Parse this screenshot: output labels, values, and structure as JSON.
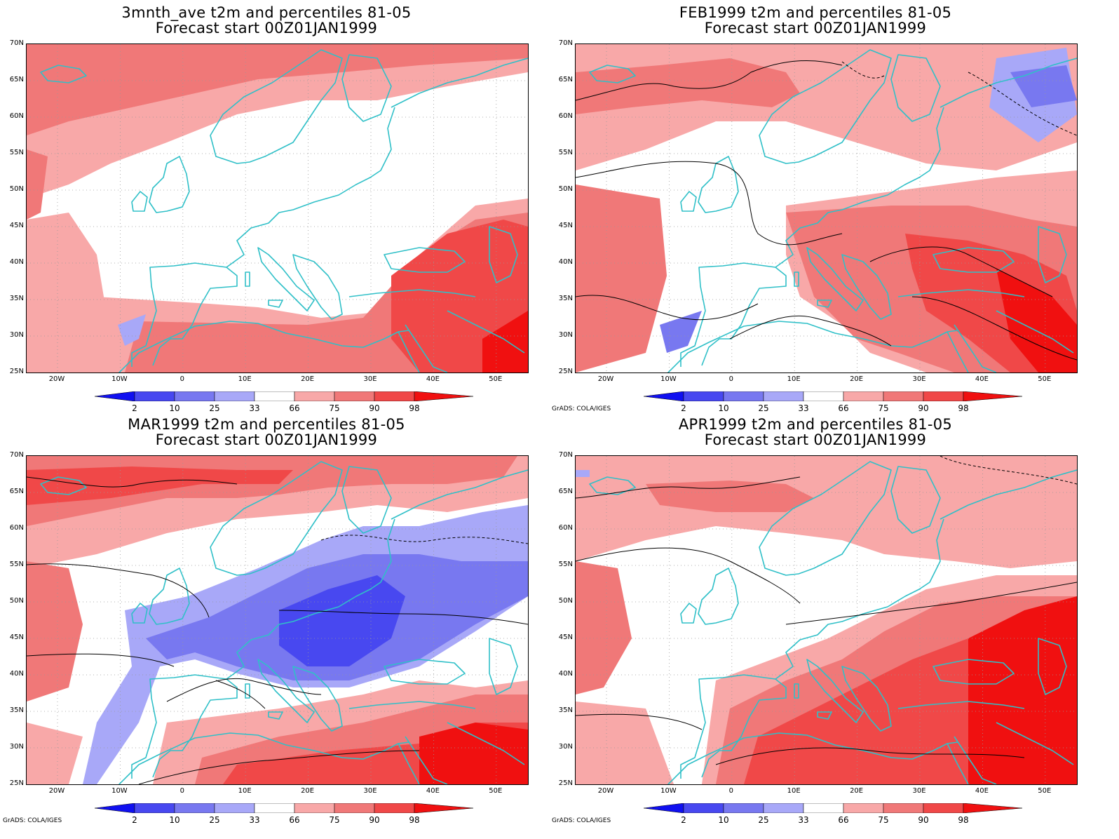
{
  "panels": [
    {
      "title1": "3mnth_ave t2m and percentiles 81-05",
      "title2": "Forecast start 00Z01JAN1999"
    },
    {
      "title1": "FEB1999 t2m and percentiles 81-05",
      "title2": "Forecast start 00Z01JAN1999"
    },
    {
      "title1": "MAR1999 t2m and percentiles 81-05",
      "title2": "Forecast start 00Z01JAN1999"
    },
    {
      "title1": "APR1999 t2m and percentiles 81-05",
      "title2": "Forecast start 00Z01JAN1999"
    }
  ],
  "lat_labels": [
    "70N",
    "65N",
    "60N",
    "55N",
    "50N",
    "45N",
    "40N",
    "35N",
    "30N",
    "25N"
  ],
  "lon_labels": [
    "20W",
    "10W",
    "0",
    "10E",
    "20E",
    "30E",
    "40E",
    "50E"
  ],
  "colorbar": {
    "labels": [
      "2",
      "10",
      "25",
      "33",
      "66",
      "75",
      "90",
      "98"
    ],
    "colors": {
      "p0_2": "#1010f0",
      "p2_10": "#4848f0",
      "p10_25": "#7878f0",
      "p25_33": "#a8a8f8",
      "p33_66": "#ffffff",
      "p66_75": "#f8a8a8",
      "p75_90": "#f07878",
      "p90_98": "#f04848",
      "p98_100": "#f01010"
    }
  },
  "credit": "GrADS: COLA/IGES",
  "coast_color": "#30c0c8"
}
